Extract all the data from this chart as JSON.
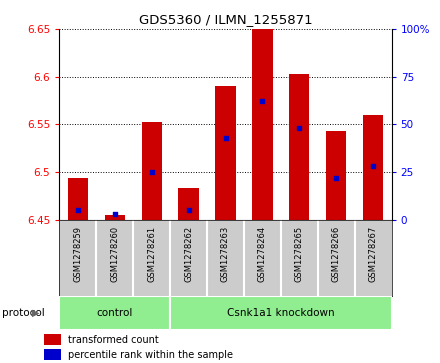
{
  "title": "GDS5360 / ILMN_1255871",
  "samples": [
    "GSM1278259",
    "GSM1278260",
    "GSM1278261",
    "GSM1278262",
    "GSM1278263",
    "GSM1278264",
    "GSM1278265",
    "GSM1278266",
    "GSM1278267"
  ],
  "bar_base": 6.45,
  "bar_tops": [
    6.494,
    6.455,
    6.552,
    6.483,
    6.59,
    6.65,
    6.603,
    6.543,
    6.56
  ],
  "percentile_vals": [
    5,
    3,
    25,
    5,
    43,
    62,
    48,
    22,
    28
  ],
  "bar_color": "#cc0000",
  "blue_color": "#0000cc",
  "ylim": [
    6.45,
    6.65
  ],
  "yticks": [
    6.45,
    6.5,
    6.55,
    6.6,
    6.65
  ],
  "right_yticks": [
    0,
    25,
    50,
    75,
    100
  ],
  "protocol_groups": [
    {
      "label": "control",
      "start": 0,
      "end": 3
    },
    {
      "label": "Csnk1a1 knockdown",
      "start": 3,
      "end": 9
    }
  ],
  "protocol_label": "protocol",
  "legend_red": "transformed count",
  "legend_blue": "percentile rank within the sample",
  "bar_width": 0.55,
  "group_bg": "#90ee90",
  "label_area_bg": "#cccccc"
}
